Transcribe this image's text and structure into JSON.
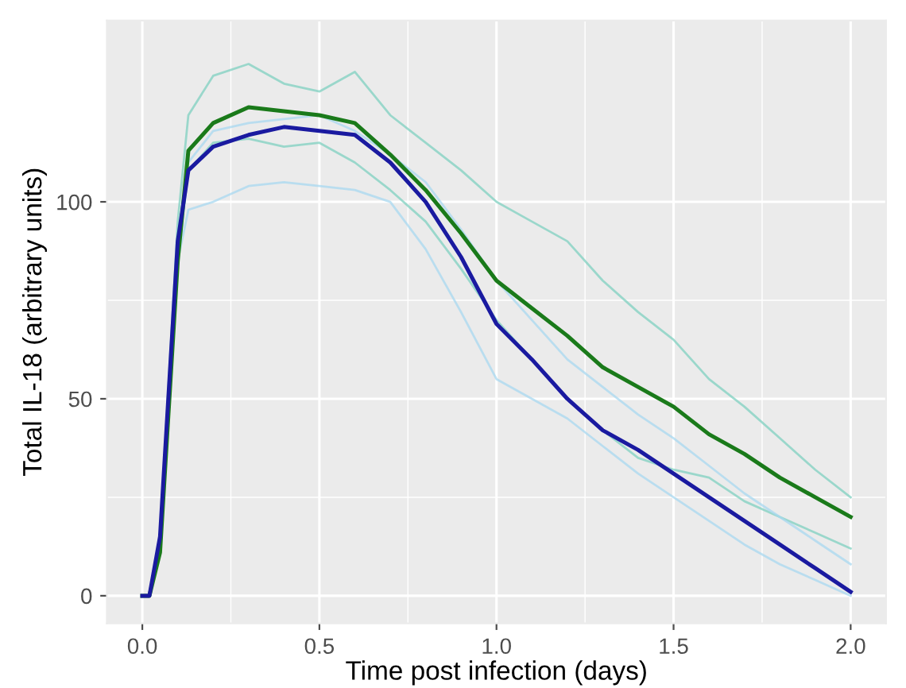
{
  "chart_data": {
    "type": "line",
    "xlabel": "Time post infection (days)",
    "ylabel": "Total IL-18 (arbitrary units)",
    "x": [
      0.0,
      0.02,
      0.05,
      0.1,
      0.13,
      0.2,
      0.3,
      0.4,
      0.5,
      0.6,
      0.7,
      0.8,
      0.9,
      1.0,
      1.1,
      1.2,
      1.3,
      1.4,
      1.5,
      1.6,
      1.7,
      1.8,
      1.9,
      2.0
    ],
    "series": [
      {
        "color": "#7fd0c0",
        "values": [
          0,
          0,
          15,
          95,
          122,
          132,
          135,
          130,
          128,
          133,
          122,
          115,
          108,
          100,
          95,
          90,
          80,
          72,
          65,
          55,
          48,
          40,
          32,
          25
        ]
      },
      {
        "color": "#7fd0c0",
        "values": [
          0,
          0,
          15,
          85,
          108,
          115,
          116,
          114,
          115,
          110,
          103,
          95,
          83,
          70,
          60,
          50,
          42,
          35,
          32,
          30,
          24,
          20,
          16,
          12
        ]
      },
      {
        "color": "#a8d8f0",
        "values": [
          0,
          0,
          15,
          90,
          110,
          118,
          120,
          121,
          122,
          118,
          112,
          105,
          93,
          80,
          70,
          60,
          53,
          46,
          40,
          33,
          26,
          20,
          14,
          8
        ]
      },
      {
        "color": "#a8d8f0",
        "values": [
          0,
          0,
          15,
          85,
          98,
          100,
          104,
          105,
          104,
          103,
          100,
          88,
          72,
          55,
          50,
          45,
          38,
          31,
          25,
          19,
          13,
          8,
          4,
          0
        ]
      },
      {
        "color": "#1a7a1a",
        "values": [
          0,
          0,
          11,
          85,
          113,
          120,
          124,
          123,
          122,
          120,
          112,
          103,
          92,
          80,
          73,
          66,
          58,
          53,
          48,
          41,
          36,
          30,
          25,
          20
        ]
      },
      {
        "color": "#1a1aa0",
        "values": [
          0,
          0,
          15,
          90,
          108,
          114,
          117,
          119,
          118,
          117,
          110,
          100,
          86,
          69,
          60,
          50,
          42,
          37,
          31,
          25,
          19,
          13,
          7,
          1
        ]
      }
    ],
    "xlim": [
      -0.1,
      2.1
    ],
    "ylim": [
      -7,
      146
    ],
    "xticks": [
      {
        "value": 0,
        "label": "0.0"
      },
      0.5,
      {
        "value": 1,
        "label": "1.0"
      },
      1.5,
      {
        "value": 2,
        "label": "2.0"
      }
    ],
    "yticks": [
      0,
      50,
      100
    ],
    "grid": true,
    "legend": false,
    "marker": "none",
    "line_style": "solid"
  }
}
